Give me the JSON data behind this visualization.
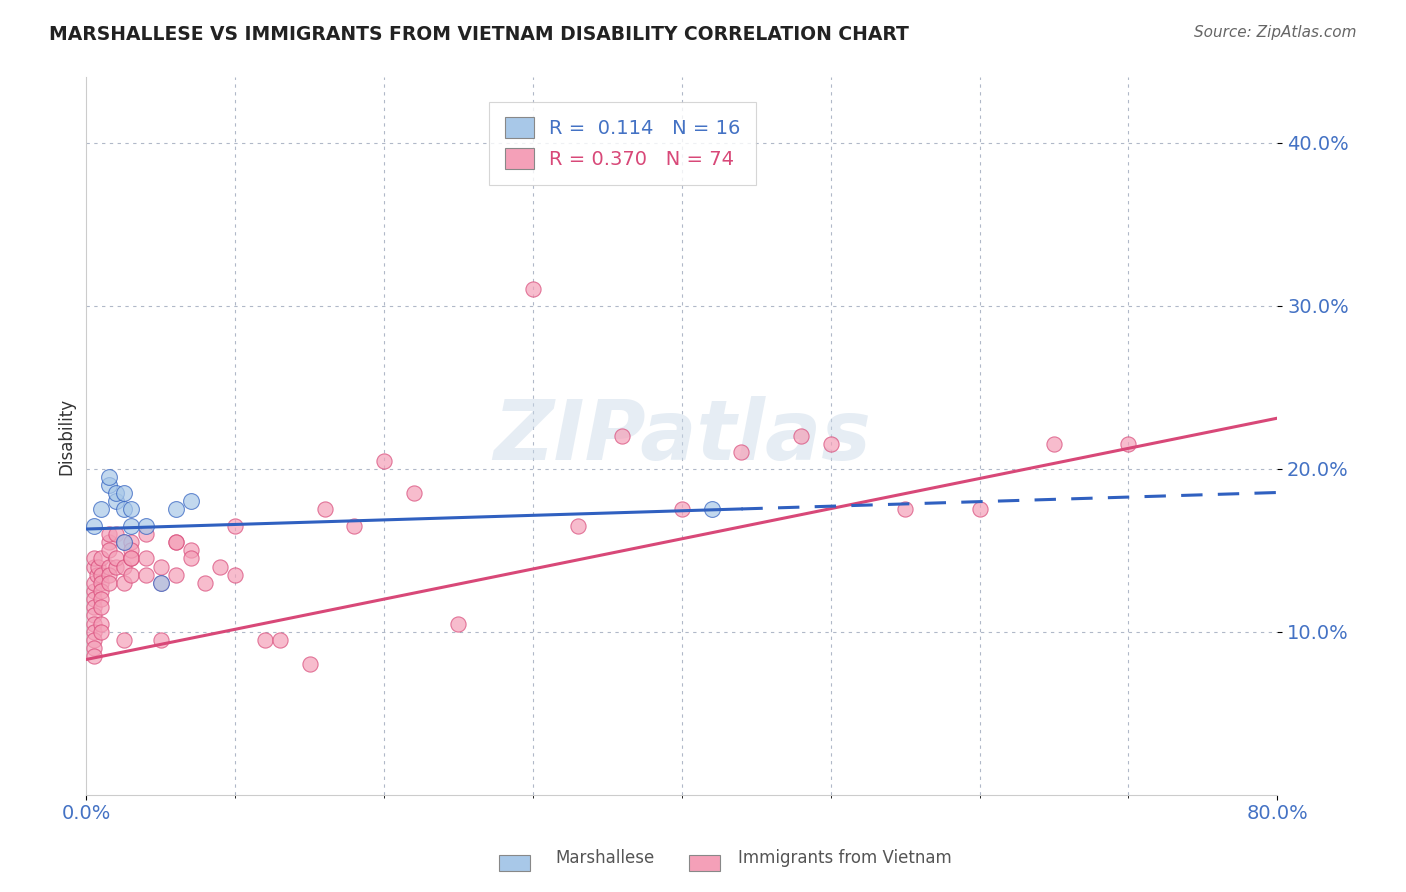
{
  "title": "MARSHALLESE VS IMMIGRANTS FROM VIETNAM DISABILITY CORRELATION CHART",
  "source": "Source: ZipAtlas.com",
  "ylabel": "Disability",
  "xlim": [
    0,
    0.8
  ],
  "ylim": [
    0,
    0.44
  ],
  "yticks": [
    0.1,
    0.2,
    0.3,
    0.4
  ],
  "ytick_labels": [
    "10.0%",
    "20.0%",
    "30.0%",
    "40.0%"
  ],
  "marshallese_R": 0.114,
  "marshallese_N": 16,
  "vietnam_R": 0.37,
  "vietnam_N": 74,
  "blue_color": "#a8c8e8",
  "pink_color": "#f4a0b8",
  "blue_line_color": "#3060c0",
  "pink_line_color": "#d84878",
  "watermark": "ZIPatlas",
  "marshallese_x": [
    0.005,
    0.01,
    0.015,
    0.015,
    0.02,
    0.02,
    0.025,
    0.025,
    0.025,
    0.03,
    0.03,
    0.04,
    0.05,
    0.06,
    0.07,
    0.42
  ],
  "marshallese_y": [
    0.165,
    0.175,
    0.19,
    0.195,
    0.18,
    0.185,
    0.175,
    0.185,
    0.155,
    0.175,
    0.165,
    0.165,
    0.13,
    0.175,
    0.18,
    0.175
  ],
  "vietnam_x": [
    0.005,
    0.005,
    0.005,
    0.005,
    0.005,
    0.005,
    0.005,
    0.005,
    0.005,
    0.005,
    0.005,
    0.005,
    0.007,
    0.008,
    0.01,
    0.01,
    0.01,
    0.01,
    0.01,
    0.01,
    0.01,
    0.01,
    0.015,
    0.015,
    0.015,
    0.015,
    0.015,
    0.015,
    0.02,
    0.02,
    0.02,
    0.025,
    0.025,
    0.025,
    0.025,
    0.03,
    0.03,
    0.03,
    0.03,
    0.03,
    0.04,
    0.04,
    0.04,
    0.05,
    0.05,
    0.05,
    0.06,
    0.06,
    0.06,
    0.07,
    0.07,
    0.08,
    0.09,
    0.1,
    0.1,
    0.12,
    0.13,
    0.15,
    0.16,
    0.18,
    0.2,
    0.22,
    0.25,
    0.3,
    0.33,
    0.36,
    0.4,
    0.44,
    0.48,
    0.5,
    0.55,
    0.6,
    0.65,
    0.7
  ],
  "vietnam_y": [
    0.125,
    0.12,
    0.115,
    0.11,
    0.105,
    0.1,
    0.095,
    0.09,
    0.085,
    0.14,
    0.13,
    0.145,
    0.135,
    0.14,
    0.135,
    0.13,
    0.125,
    0.12,
    0.115,
    0.105,
    0.1,
    0.145,
    0.14,
    0.135,
    0.13,
    0.155,
    0.15,
    0.16,
    0.14,
    0.145,
    0.16,
    0.14,
    0.13,
    0.095,
    0.155,
    0.145,
    0.135,
    0.155,
    0.15,
    0.145,
    0.135,
    0.145,
    0.16,
    0.14,
    0.13,
    0.095,
    0.155,
    0.135,
    0.155,
    0.15,
    0.145,
    0.13,
    0.14,
    0.135,
    0.165,
    0.095,
    0.095,
    0.08,
    0.175,
    0.165,
    0.205,
    0.185,
    0.105,
    0.31,
    0.165,
    0.22,
    0.175,
    0.21,
    0.22,
    0.215,
    0.175,
    0.175,
    0.215,
    0.215
  ],
  "blue_line_intercept": 0.163,
  "blue_line_slope": 0.028,
  "pink_line_intercept": 0.083,
  "pink_line_slope": 0.185
}
